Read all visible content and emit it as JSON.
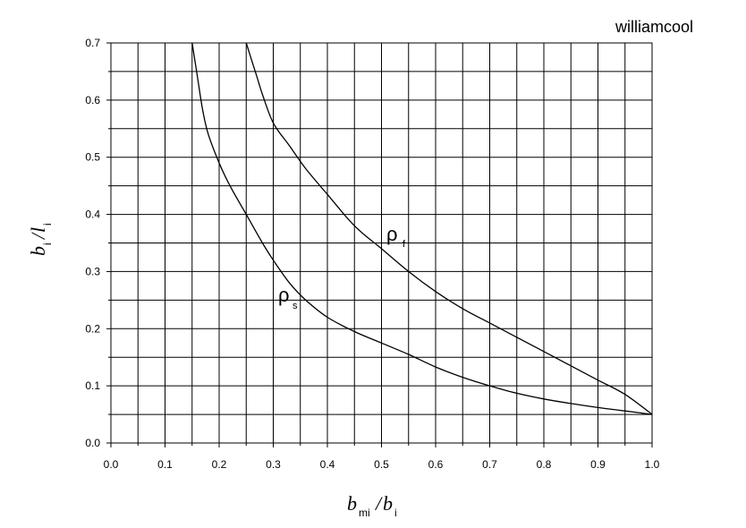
{
  "chart_data": {
    "type": "line",
    "watermark": "williamcool",
    "xlabel": {
      "main1": "b",
      "sub1": "mi",
      "sep": "/",
      "main2": "b",
      "sub2": "i"
    },
    "ylabel": {
      "main1": "b",
      "sub1": "i",
      "sep": "/",
      "main2": "l",
      "sub2": "i"
    },
    "xlim": [
      0.0,
      1.0
    ],
    "ylim": [
      0.0,
      0.7
    ],
    "grid": true,
    "x_ticks": [
      "0.0",
      "0.1",
      "0.2",
      "0.3",
      "0.4",
      "0.5",
      "0.6",
      "0.7",
      "0.8",
      "0.9",
      "1.0"
    ],
    "y_ticks": [
      "0.0",
      "0.1",
      "0.2",
      "0.3",
      "0.4",
      "0.5",
      "0.6",
      "0.7"
    ],
    "series": [
      {
        "name": "ρ_s",
        "label_main": "ρ",
        "label_sub": "s",
        "x": [
          0.15,
          0.16,
          0.17,
          0.18,
          0.2,
          0.22,
          0.25,
          0.28,
          0.3,
          0.33,
          0.36,
          0.4,
          0.45,
          0.5,
          0.55,
          0.6,
          0.65,
          0.7,
          0.75,
          0.8,
          0.85,
          0.9,
          0.95,
          1.0
        ],
        "y": [
          0.7,
          0.64,
          0.58,
          0.54,
          0.49,
          0.45,
          0.4,
          0.35,
          0.32,
          0.28,
          0.25,
          0.22,
          0.195,
          0.175,
          0.155,
          0.133,
          0.115,
          0.1,
          0.087,
          0.077,
          0.069,
          0.062,
          0.056,
          0.05
        ]
      },
      {
        "name": "ρ_f",
        "label_main": "ρ",
        "label_sub": "f",
        "x": [
          0.25,
          0.26,
          0.27,
          0.28,
          0.3,
          0.33,
          0.36,
          0.4,
          0.45,
          0.5,
          0.55,
          0.6,
          0.65,
          0.7,
          0.75,
          0.8,
          0.85,
          0.9,
          0.95,
          1.0
        ],
        "y": [
          0.7,
          0.67,
          0.64,
          0.61,
          0.56,
          0.52,
          0.48,
          0.435,
          0.38,
          0.34,
          0.3,
          0.265,
          0.235,
          0.21,
          0.185,
          0.16,
          0.135,
          0.11,
          0.085,
          0.05
        ]
      }
    ]
  }
}
